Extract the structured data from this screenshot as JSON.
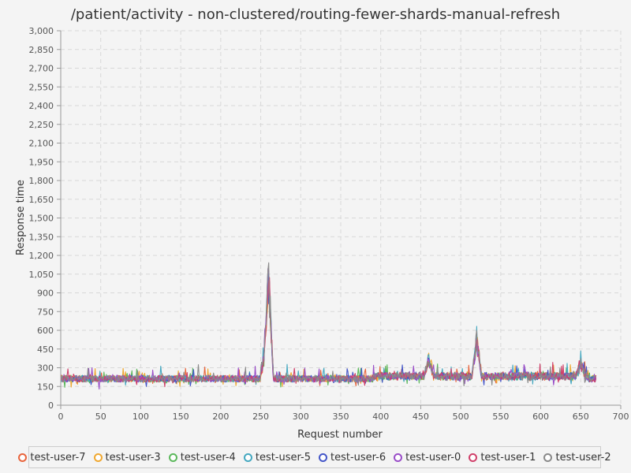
{
  "chart_data": {
    "type": "line",
    "title": "/patient/activity - non-clustered/routing-fewer-shards-manual-refresh",
    "xlabel": "Request number",
    "ylabel": "Response time",
    "xlim": [
      0,
      700
    ],
    "ylim": [
      0,
      3000
    ],
    "x_ticks": [
      "0",
      "50",
      "100",
      "150",
      "200",
      "250",
      "300",
      "350",
      "400",
      "450",
      "500",
      "550",
      "600",
      "650",
      "700"
    ],
    "y_ticks": [
      "0",
      "150",
      "300",
      "450",
      "600",
      "750",
      "900",
      "1,050",
      "1,200",
      "1,350",
      "1,500",
      "1,650",
      "1,800",
      "1,950",
      "2,100",
      "2,250",
      "2,400",
      "2,550",
      "2,700",
      "2,850",
      "3,000"
    ],
    "grid": true,
    "legend_position": "bottom",
    "n_points": 670,
    "baseline_range": [
      150,
      300
    ],
    "spikes": [
      {
        "x": 260,
        "y": 1190
      },
      {
        "x": 255,
        "y": 480
      },
      {
        "x": 520,
        "y": 610
      },
      {
        "x": 460,
        "y": 400
      },
      {
        "x": 650,
        "y": 350
      }
    ],
    "series": [
      {
        "name": "test-user-7",
        "color": "#e8643c"
      },
      {
        "name": "test-user-3",
        "color": "#f0a830"
      },
      {
        "name": "test-user-4",
        "color": "#5cb85c"
      },
      {
        "name": "test-user-5",
        "color": "#45a8c0"
      },
      {
        "name": "test-user-6",
        "color": "#4456c8"
      },
      {
        "name": "test-user-0",
        "color": "#9a4ec8"
      },
      {
        "name": "test-user-1",
        "color": "#d0406a"
      },
      {
        "name": "test-user-2",
        "color": "#8a8a8a"
      }
    ]
  }
}
